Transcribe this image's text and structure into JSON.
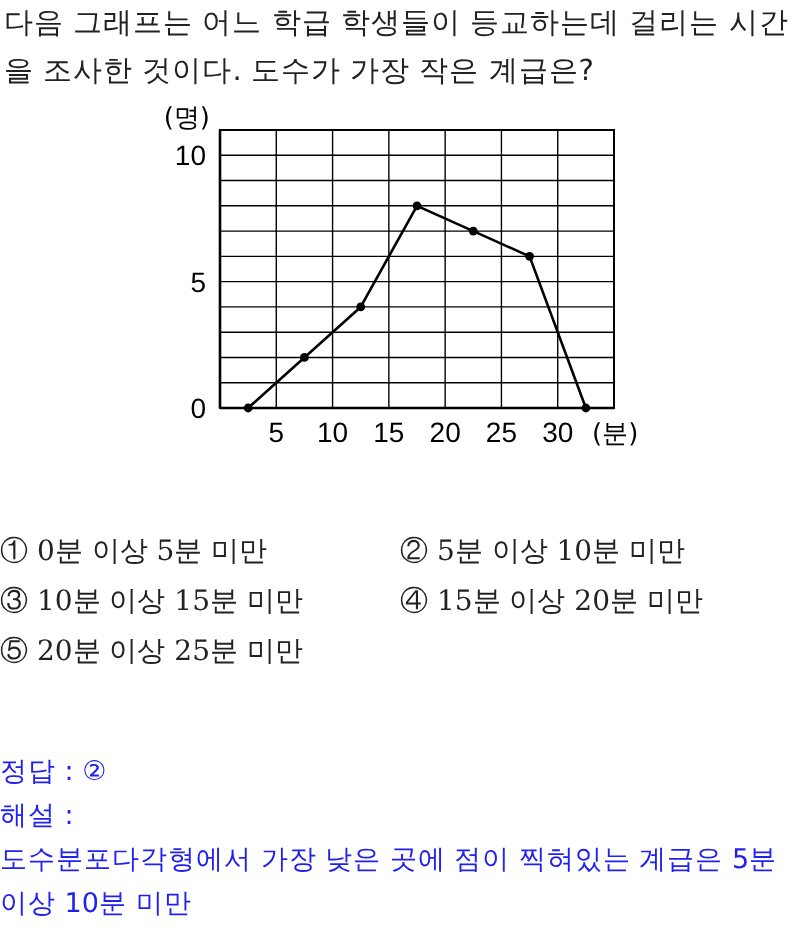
{
  "chart_data": {
    "type": "line",
    "title": "다음 그래프는 어느 학급 학생들이 등교하는데 걸리는 시간을 조사한 것이다. 도수가 가장 작은 계급은?",
    "xlabel": "(분)",
    "ylabel": "(명)",
    "x": [
      2.5,
      7.5,
      12.5,
      17.5,
      22.5,
      27.5,
      32.5
    ],
    "series": [
      {
        "color": "#000000",
        "values": [
          0,
          2,
          4,
          8,
          7,
          6,
          0
        ]
      }
    ],
    "xlim": [
      0,
      35
    ],
    "xticks": [
      5,
      10,
      15,
      20,
      25,
      30
    ],
    "ylim": [
      0,
      11
    ],
    "yticks": [
      0,
      {
        "value": 1,
        "label": null
      },
      {
        "value": 2,
        "label": null
      },
      {
        "value": 3,
        "label": null
      },
      {
        "value": 4,
        "label": null
      },
      5,
      {
        "value": 6,
        "label": null
      },
      {
        "value": 7,
        "label": null
      },
      {
        "value": 8,
        "label": null
      },
      {
        "value": 9,
        "label": null
      },
      10
    ],
    "grid": true,
    "marker": "circle",
    "line_style": "solid",
    "annotations": [
      "① 0분 이상 5분 미만",
      "② 5분 이상 10분 미만",
      "③ 10분 이상 15분 미만",
      "④ 15분 이상 20분 미만",
      "⑤ 20분 이상 25분 미만",
      "정답 : ②",
      "해설 :",
      "도수분포다각형에서 가장 낮은 곳에 점이 찍혀있는 계급은 5분 이상 10분 미만"
    ]
  }
}
